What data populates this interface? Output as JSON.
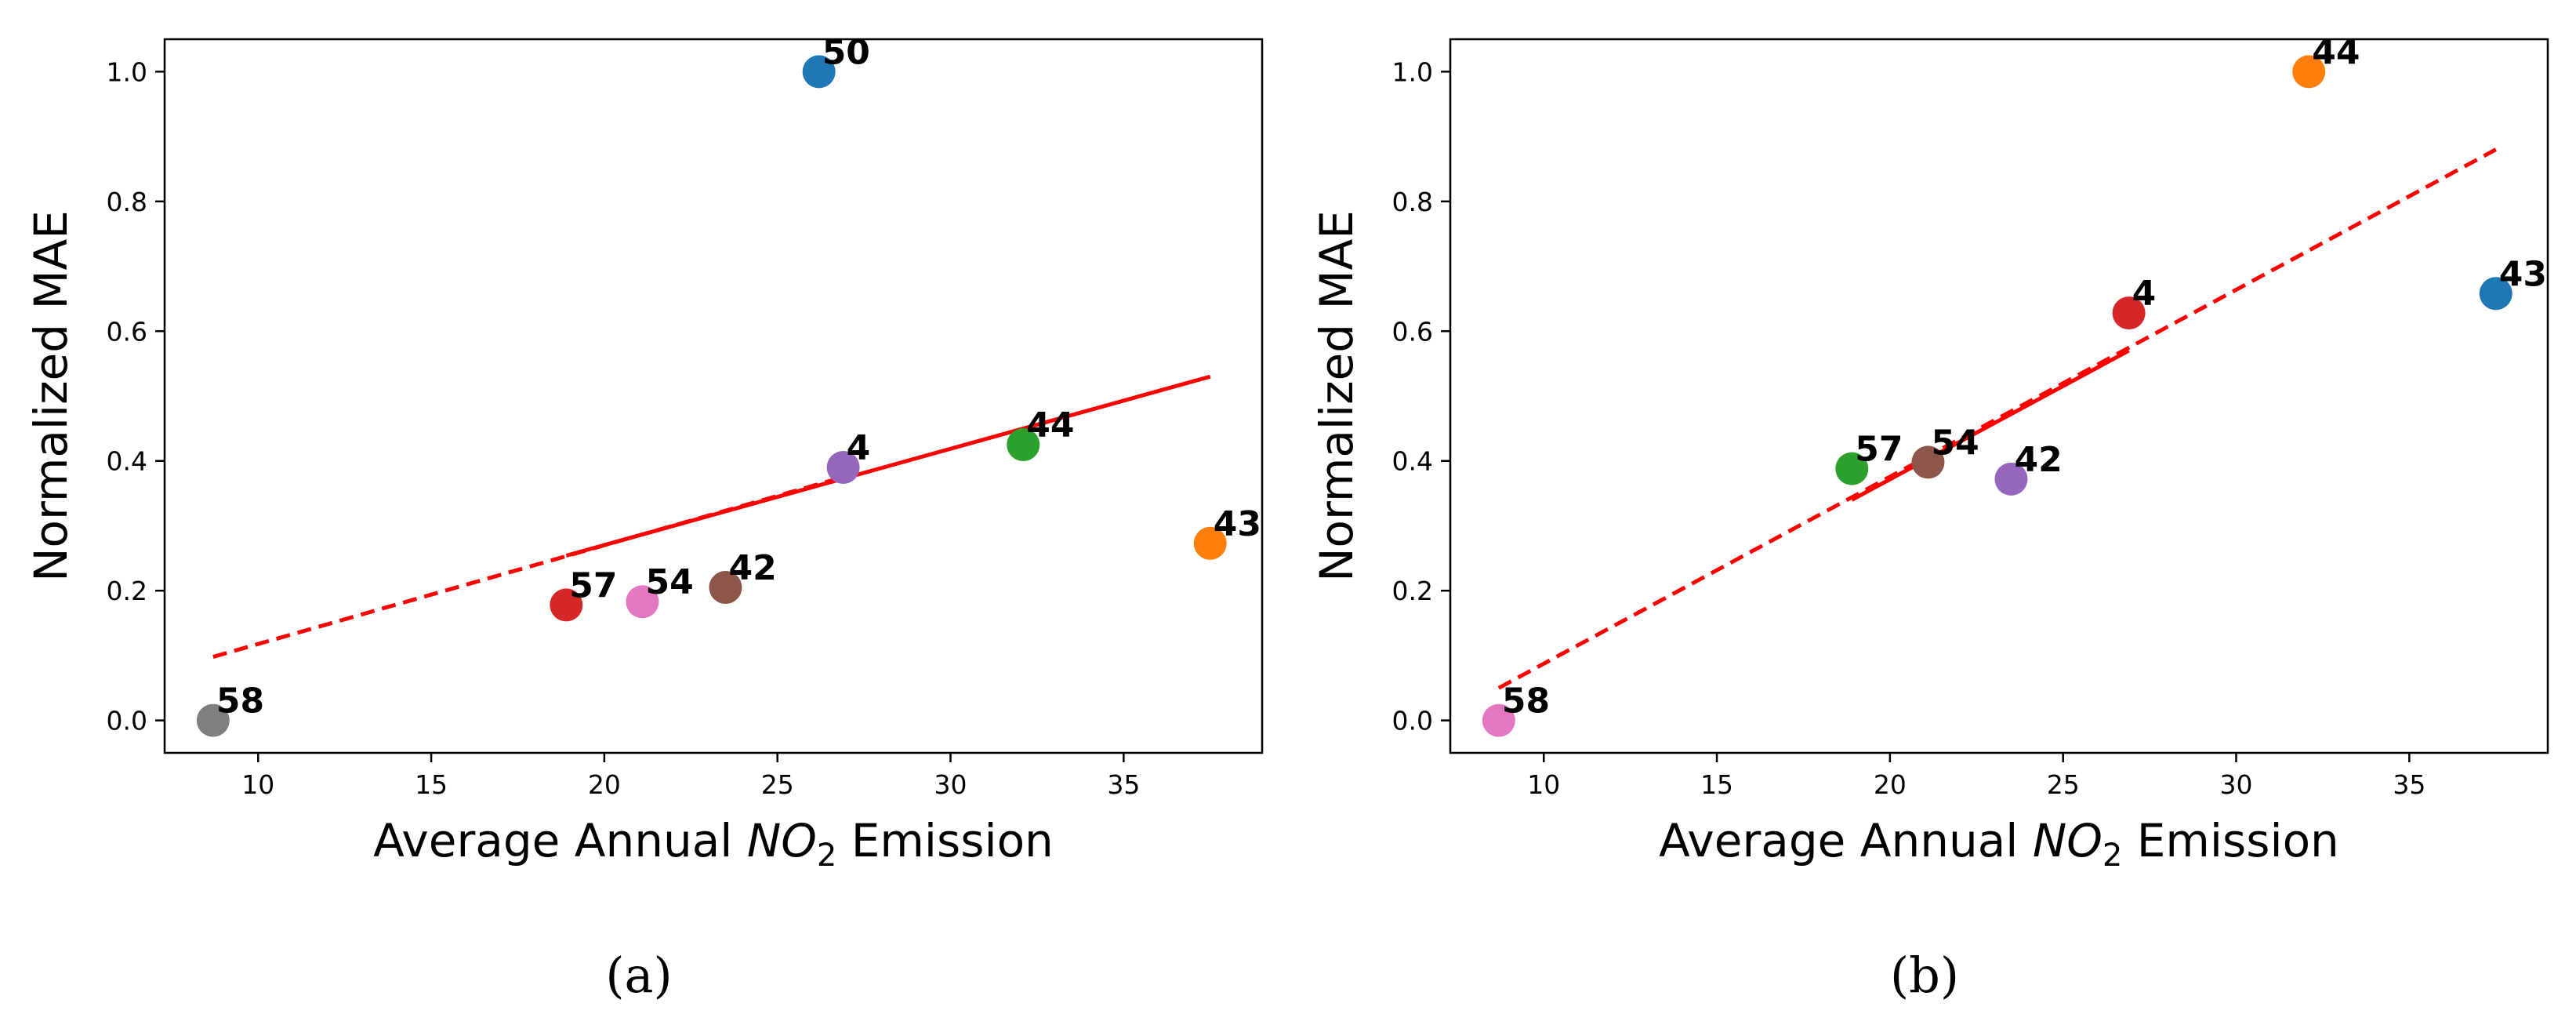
{
  "chart_data": [
    {
      "type": "scatter",
      "panel": "a",
      "caption": "(a)",
      "xlabel_prefix": "Average Annual ",
      "xlabel_var": "NO",
      "xlabel_sub": "2",
      "xlabel_suffix": " Emission",
      "ylabel": "Normalized MAE",
      "xlim": [
        7.3,
        39.0
      ],
      "ylim": [
        -0.05,
        1.05
      ],
      "xticks": [
        10,
        15,
        20,
        25,
        30,
        35
      ],
      "yticks": [
        0.0,
        0.2,
        0.4,
        0.6,
        0.8,
        1.0
      ],
      "xtick_labels": [
        "10",
        "15",
        "20",
        "25",
        "30",
        "35"
      ],
      "ytick_labels": [
        "0.0",
        "0.2",
        "0.4",
        "0.6",
        "0.8",
        "1.0"
      ],
      "points": [
        {
          "label": "58",
          "x": 8.7,
          "y": 0.0,
          "color": "#7f7f7f"
        },
        {
          "label": "57",
          "x": 18.9,
          "y": 0.178,
          "color": "#d62728"
        },
        {
          "label": "54",
          "x": 21.1,
          "y": 0.183,
          "color": "#e377c2"
        },
        {
          "label": "42",
          "x": 23.5,
          "y": 0.205,
          "color": "#8c564b"
        },
        {
          "label": "4",
          "x": 26.9,
          "y": 0.39,
          "color": "#9467bd"
        },
        {
          "label": "44",
          "x": 32.1,
          "y": 0.425,
          "color": "#2ca02c"
        },
        {
          "label": "43",
          "x": 37.5,
          "y": 0.273,
          "color": "#ff7f0e"
        },
        {
          "label": "50",
          "x": 26.2,
          "y": 1.0,
          "color": "#1f77b4"
        }
      ],
      "fit": {
        "color": "#ff0000",
        "dashed": {
          "x": [
            8.7,
            26.9
          ],
          "y": [
            0.098,
            0.375
          ]
        },
        "solid": {
          "x": [
            18.9,
            37.5
          ],
          "y": [
            0.254,
            0.53
          ]
        }
      }
    },
    {
      "type": "scatter",
      "panel": "b",
      "caption": "(b)",
      "xlabel_prefix": "Average Annual ",
      "xlabel_var": "NO",
      "xlabel_sub": "2",
      "xlabel_suffix": " Emission",
      "ylabel": "Normalized MAE",
      "xlim": [
        7.3,
        39.0
      ],
      "ylim": [
        -0.05,
        1.05
      ],
      "xticks": [
        10,
        15,
        20,
        25,
        30,
        35
      ],
      "yticks": [
        0.0,
        0.2,
        0.4,
        0.6,
        0.8,
        1.0
      ],
      "xtick_labels": [
        "10",
        "15",
        "20",
        "25",
        "30",
        "35"
      ],
      "ytick_labels": [
        "0.0",
        "0.2",
        "0.4",
        "0.6",
        "0.8",
        "1.0"
      ],
      "points": [
        {
          "label": "58",
          "x": 8.7,
          "y": 0.0,
          "color": "#e377c2"
        },
        {
          "label": "57",
          "x": 18.9,
          "y": 0.388,
          "color": "#2ca02c"
        },
        {
          "label": "54",
          "x": 21.1,
          "y": 0.398,
          "color": "#8c564b"
        },
        {
          "label": "42",
          "x": 23.5,
          "y": 0.372,
          "color": "#9467bd"
        },
        {
          "label": "4",
          "x": 26.9,
          "y": 0.628,
          "color": "#d62728"
        },
        {
          "label": "44",
          "x": 32.1,
          "y": 1.0,
          "color": "#ff7f0e"
        },
        {
          "label": "43",
          "x": 37.5,
          "y": 0.658,
          "color": "#1f77b4"
        }
      ],
      "fit": {
        "color": "#ff0000",
        "dashed": {
          "x": [
            8.7,
            37.5
          ],
          "y": [
            0.05,
            0.88
          ]
        },
        "solid": {
          "x": [
            18.9,
            26.9
          ],
          "y": [
            0.34,
            0.57
          ]
        }
      }
    }
  ]
}
